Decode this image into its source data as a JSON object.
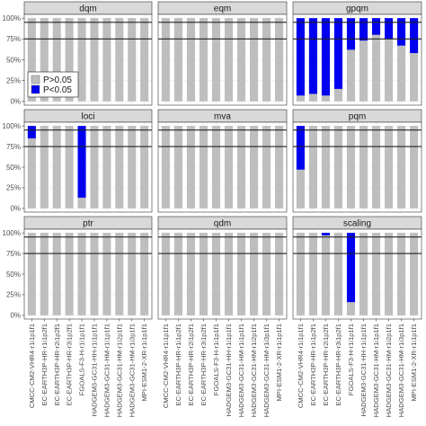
{
  "chart_data": {
    "type": "bar",
    "stacked": true,
    "facets": [
      "dqm",
      "eqm",
      "gpqm",
      "loci",
      "mva",
      "pqm",
      "ptr",
      "qdm",
      "scaling"
    ],
    "facet_layout": "3x3",
    "categories": [
      "CMCC-CM2-VHR4-r1i1p1f1",
      "EC-EARTH3P-HR-r1i1p2f1",
      "EC-EARTH3P-HR-r2i1p2f1",
      "EC-EARTH3P-HR-r3i1p2f1",
      "FGOALS-F3-H-r1i1p1f1",
      "HADGEM3-GC31-HH-r1i1p1f1",
      "HADGEM3-GC31-HM-r1i1p1f1",
      "HADGEM3-GC31-HM-r1i2p1f1",
      "HADGEM3-GC31-HM-r1i3p1f1",
      "MPI-ESM1-2-XR-r1i1p1f1"
    ],
    "legend": {
      "placement": "inside-top-left",
      "entries": [
        {
          "label": "P>0.05",
          "color": "#bebebe"
        },
        {
          "label": "P<0.05",
          "color": "#0000ee"
        }
      ]
    },
    "yticks": [
      "0%",
      "25%",
      "50%",
      "75%",
      "100%"
    ],
    "ylim": [
      0,
      100
    ],
    "reference_lines": [
      75,
      95
    ],
    "series_name_order": [
      "P>0.05",
      "P<0.05"
    ],
    "p_lt_005": {
      "dqm": [
        0,
        0,
        0,
        0,
        0,
        0,
        0,
        0,
        0,
        0
      ],
      "eqm": [
        0,
        0,
        0,
        0,
        0,
        0,
        0,
        0,
        0,
        0
      ],
      "gpqm": [
        93,
        91,
        93,
        85,
        38,
        27,
        20,
        25,
        33,
        42
      ],
      "loci": [
        15,
        0,
        0,
        0,
        87,
        0,
        0,
        0,
        0,
        0
      ],
      "mva": [
        0,
        0,
        0,
        0,
        0,
        0,
        0,
        0,
        0,
        0
      ],
      "pqm": [
        53,
        0,
        0,
        0,
        0,
        0,
        0,
        0,
        0,
        0
      ],
      "ptr": [
        0,
        0,
        0,
        0,
        0,
        0,
        0,
        0,
        0,
        0
      ],
      "qdm": [
        0,
        0,
        0,
        0,
        0,
        0,
        0,
        0,
        0,
        0
      ],
      "scaling": [
        0,
        0,
        3,
        0,
        84,
        0,
        0,
        0,
        0,
        0
      ]
    },
    "title": "",
    "xlabel": "",
    "ylabel": "",
    "grid": true
  }
}
